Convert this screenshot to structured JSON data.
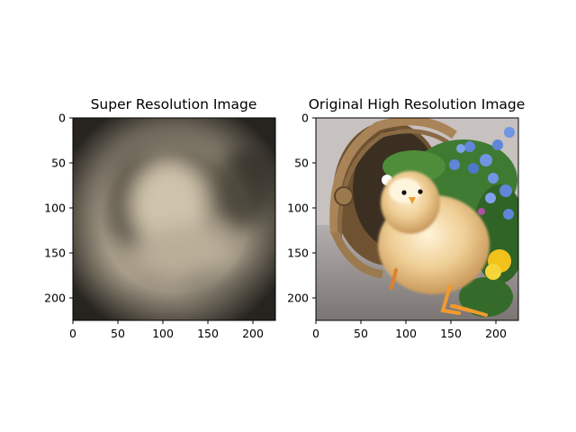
{
  "figure": {
    "panels": [
      {
        "title": "Super Resolution Image",
        "content": "blurred chick image",
        "x_ticks": [
          "0",
          "50",
          "100",
          "150",
          "200"
        ],
        "y_ticks": [
          "0",
          "50",
          "100",
          "150",
          "200"
        ]
      },
      {
        "title": "Original High Resolution Image",
        "content": "chick with basket and flowers",
        "x_ticks": [
          "0",
          "50",
          "100",
          "150",
          "200"
        ],
        "y_ticks": [
          "0",
          "50",
          "100",
          "150",
          "200"
        ]
      }
    ]
  },
  "colors": {
    "blur_base": "#9c9280",
    "blur_light": "#cfc3ab",
    "blur_dark": "#2b2720",
    "ground": "#8d8a87",
    "basket": "#8a6a43",
    "chick": "#e8c78c",
    "leaf": "#3f7a32",
    "flower_blue": "#5f86d8",
    "flower_yellow": "#f2c21a",
    "beak_feet": "#f29a2e"
  }
}
